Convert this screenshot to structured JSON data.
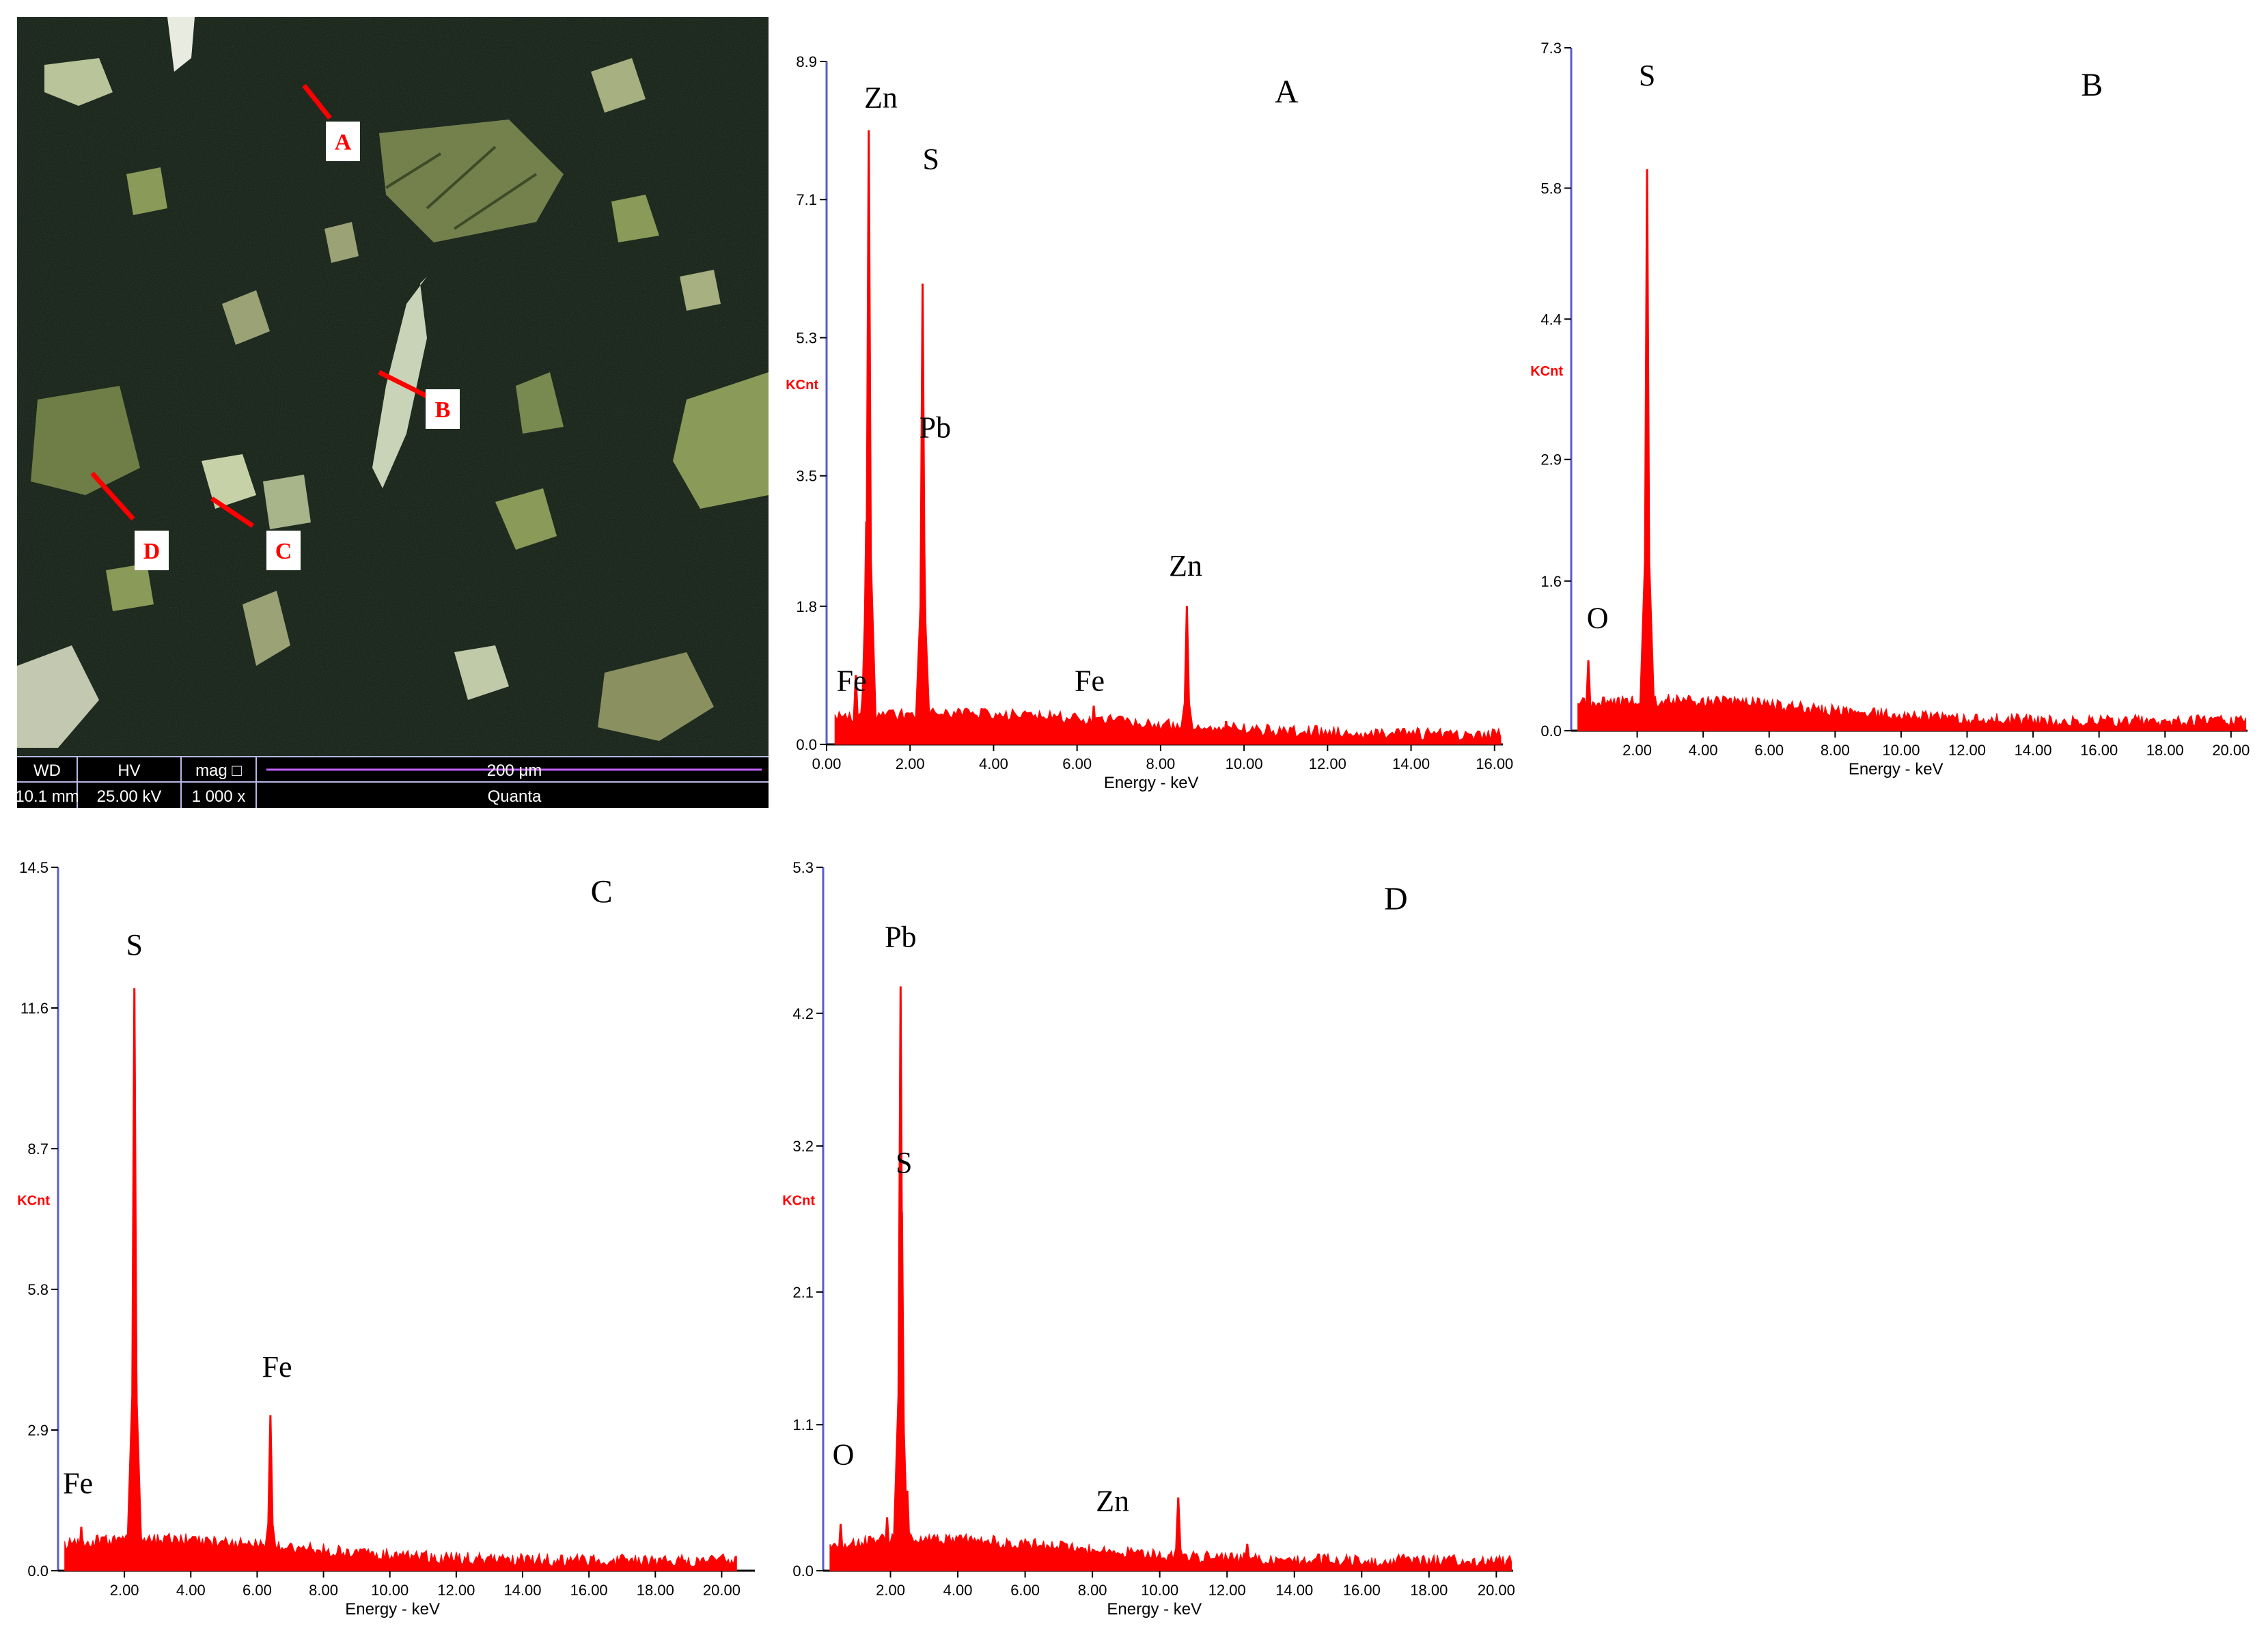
{
  "sem": {
    "points": [
      "A",
      "B",
      "C",
      "D"
    ],
    "databar": {
      "headers": [
        "WD",
        "HV",
        "mag □"
      ],
      "values": [
        "10.1 mm",
        "25.00 kV",
        "1 000 x"
      ],
      "scale_label": "200 μm",
      "instrument": "Quanta"
    }
  },
  "colors": {
    "series": "#ff0000",
    "axis": "#5b5bcf",
    "panel_bg": "#ffffff"
  },
  "chart_data": [
    {
      "type": "line",
      "panel": "A",
      "title": "A",
      "xlabel": "Energy - keV",
      "ylabel": "KCnt",
      "xlim": [
        0,
        16.2
      ],
      "ylim": [
        0,
        8.9
      ],
      "xticks": [
        "0.00",
        "2.00",
        "4.00",
        "6.00",
        "8.00",
        "10.00",
        "12.00",
        "14.00",
        "16.00"
      ],
      "yticks": [
        "0.0",
        "1.8",
        "3.5",
        "5.3",
        "7.1",
        "8.9"
      ],
      "peaks": [
        {
          "x": 0.7,
          "y": 0.9
        },
        {
          "x": 0.95,
          "y": 2.9
        },
        {
          "x": 1.01,
          "y": 8.0
        },
        {
          "x": 2.3,
          "y": 6.0
        },
        {
          "x": 2.34,
          "y": 2.5
        },
        {
          "x": 6.4,
          "y": 0.5
        },
        {
          "x": 7.05,
          "y": 0.1
        },
        {
          "x": 8.63,
          "y": 1.8
        },
        {
          "x": 9.57,
          "y": 0.3
        }
      ],
      "annotations": [
        {
          "text": "Zn",
          "x": 1.3,
          "y": 8.3
        },
        {
          "text": "S",
          "x": 2.5,
          "y": 7.5
        },
        {
          "text": "Pb",
          "x": 2.6,
          "y": 4.0
        },
        {
          "text": "Fe",
          "x": 0.6,
          "y": 0.7
        },
        {
          "text": "Fe",
          "x": 6.3,
          "y": 0.7
        },
        {
          "text": "Zn",
          "x": 8.6,
          "y": 2.2
        }
      ]
    },
    {
      "type": "line",
      "panel": "B",
      "title": "B",
      "xlabel": "Energy - keV",
      "ylabel": "KCnt",
      "xlim": [
        0,
        20.5
      ],
      "ylim": [
        0,
        7.3
      ],
      "xticks": [
        "2.00",
        "4.00",
        "6.00",
        "8.00",
        "10.00",
        "12.00",
        "14.00",
        "16.00",
        "18.00",
        "20.00",
        "2"
      ],
      "yticks": [
        "0.0",
        "1.6",
        "2.9",
        "4.4",
        "5.8",
        "7.3"
      ],
      "peaks": [
        {
          "x": 0.52,
          "y": 0.75
        },
        {
          "x": 2.3,
          "y": 6.0
        },
        {
          "x": 2.31,
          "y": 3.4
        }
      ],
      "annotations": [
        {
          "text": "S",
          "x": 2.3,
          "y": 6.9
        },
        {
          "text": "O",
          "x": 0.8,
          "y": 1.1
        }
      ]
    },
    {
      "type": "line",
      "panel": "C",
      "title": "C",
      "xlabel": "Energy - keV",
      "ylabel": "KCnt",
      "xlim": [
        0,
        21.0
      ],
      "ylim": [
        0,
        14.5
      ],
      "xticks": [
        "2.00",
        "4.00",
        "6.00",
        "8.00",
        "10.00",
        "12.00",
        "14.00",
        "16.00",
        "18.00",
        "20.00",
        "2"
      ],
      "yticks": [
        "0.0",
        "2.9",
        "5.8",
        "8.7",
        "11.6",
        "14.5"
      ],
      "peaks": [
        {
          "x": 0.7,
          "y": 0.9
        },
        {
          "x": 2.3,
          "y": 12.0
        },
        {
          "x": 2.32,
          "y": 7.3
        },
        {
          "x": 6.4,
          "y": 3.2
        },
        {
          "x": 7.05,
          "y": 0.4
        }
      ],
      "annotations": [
        {
          "text": "S",
          "x": 2.3,
          "y": 12.7
        },
        {
          "text": "Fe",
          "x": 6.6,
          "y": 4.0
        },
        {
          "text": "Fe",
          "x": 0.6,
          "y": 1.6
        }
      ]
    },
    {
      "type": "line",
      "panel": "D",
      "title": "D",
      "xlabel": "Energy - keV",
      "ylabel": "KCnt",
      "xlim": [
        0,
        20.5
      ],
      "ylim": [
        0,
        5.3
      ],
      "xticks": [
        "2.00",
        "4.00",
        "6.00",
        "8.00",
        "10.00",
        "12.00",
        "14.00",
        "16.00",
        "18.00",
        "20.00"
      ],
      "yticks": [
        "0.0",
        "1.1",
        "2.1",
        "3.2",
        "4.2",
        "5.3"
      ],
      "peaks": [
        {
          "x": 0.52,
          "y": 0.35
        },
        {
          "x": 1.9,
          "y": 0.4
        },
        {
          "x": 2.3,
          "y": 4.4
        },
        {
          "x": 2.34,
          "y": 2.7
        },
        {
          "x": 2.5,
          "y": 0.6
        },
        {
          "x": 8.63,
          "y": 0.15
        },
        {
          "x": 10.55,
          "y": 0.55
        },
        {
          "x": 12.6,
          "y": 0.2
        }
      ],
      "annotations": [
        {
          "text": "Pb",
          "x": 2.3,
          "y": 4.7
        },
        {
          "text": "S",
          "x": 2.4,
          "y": 3.0
        },
        {
          "text": "O",
          "x": 0.6,
          "y": 0.8
        },
        {
          "text": "Zn",
          "x": 8.6,
          "y": 0.45
        }
      ]
    }
  ]
}
